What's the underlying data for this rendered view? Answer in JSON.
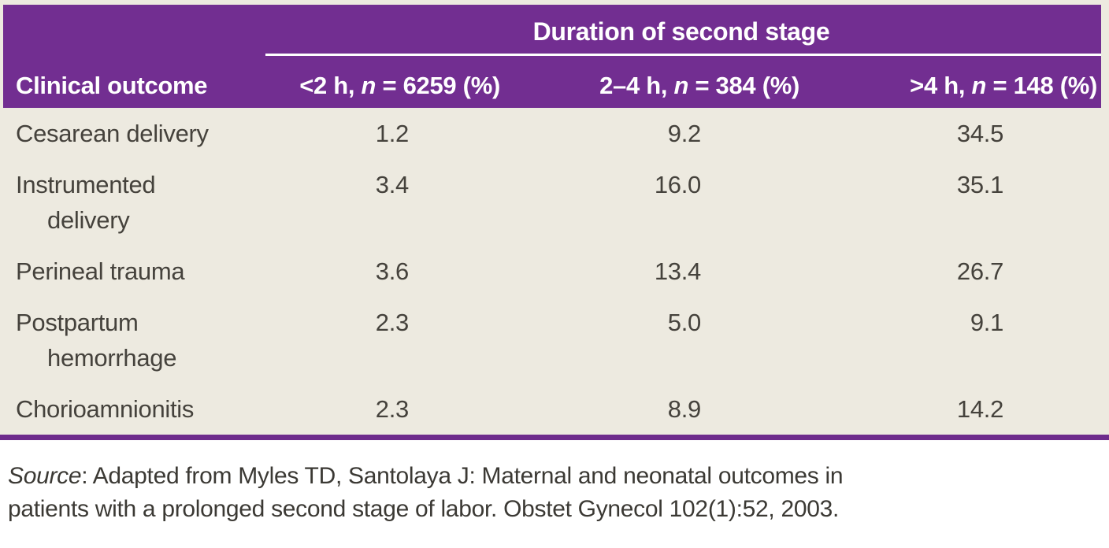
{
  "table": {
    "span_header": "Duration of second stage",
    "col1_header": "Clinical outcome",
    "columns": [
      {
        "pre": "<2 h, ",
        "n": "n",
        "post": " = 6259 (%)"
      },
      {
        "pre": "2–4 h, ",
        "n": "n",
        "post": " = 384 (%)"
      },
      {
        "pre": ">4 h, ",
        "n": "n",
        "post": " = 148 (%)"
      }
    ],
    "rows": [
      {
        "outcome": "Cesarean delivery",
        "outcome_lines": [
          "Cesarean delivery"
        ],
        "values": [
          "1.2",
          "9.2",
          "34.5"
        ]
      },
      {
        "outcome": "Instrumented delivery",
        "outcome_lines": [
          "Instrumented",
          "delivery"
        ],
        "values": [
          "3.4",
          "16.0",
          "35.1"
        ]
      },
      {
        "outcome": "Perineal trauma",
        "outcome_lines": [
          "Perineal trauma"
        ],
        "values": [
          "3.6",
          "13.4",
          "26.7"
        ]
      },
      {
        "outcome": "Postpartum hemorrhage",
        "outcome_lines": [
          "Postpartum",
          "hemorrhage"
        ],
        "values": [
          "2.3",
          "5.0",
          "9.1"
        ]
      },
      {
        "outcome": "Chorioamnionitis",
        "outcome_lines": [
          "Chorioamnionitis"
        ],
        "values": [
          "2.3",
          "8.9",
          "14.2"
        ]
      }
    ]
  },
  "source": {
    "label": "Source",
    "line1_rest": ": Adapted from Myles TD, Santolaya J: Maternal and neonatal outcomes in",
    "line2": "patients with a prolonged second stage of labor. Obstet Gynecol 102(1):52, 2003."
  },
  "colors": {
    "header_purple": "#722E91",
    "bottom_rule_purple": "#6E2C8C",
    "body_cream": "#EDEAE0",
    "page_background": "#FFFFFF",
    "header_text": "#FFFFFF",
    "body_text": "#45423C",
    "divider_rule": "#FFFFFF"
  }
}
